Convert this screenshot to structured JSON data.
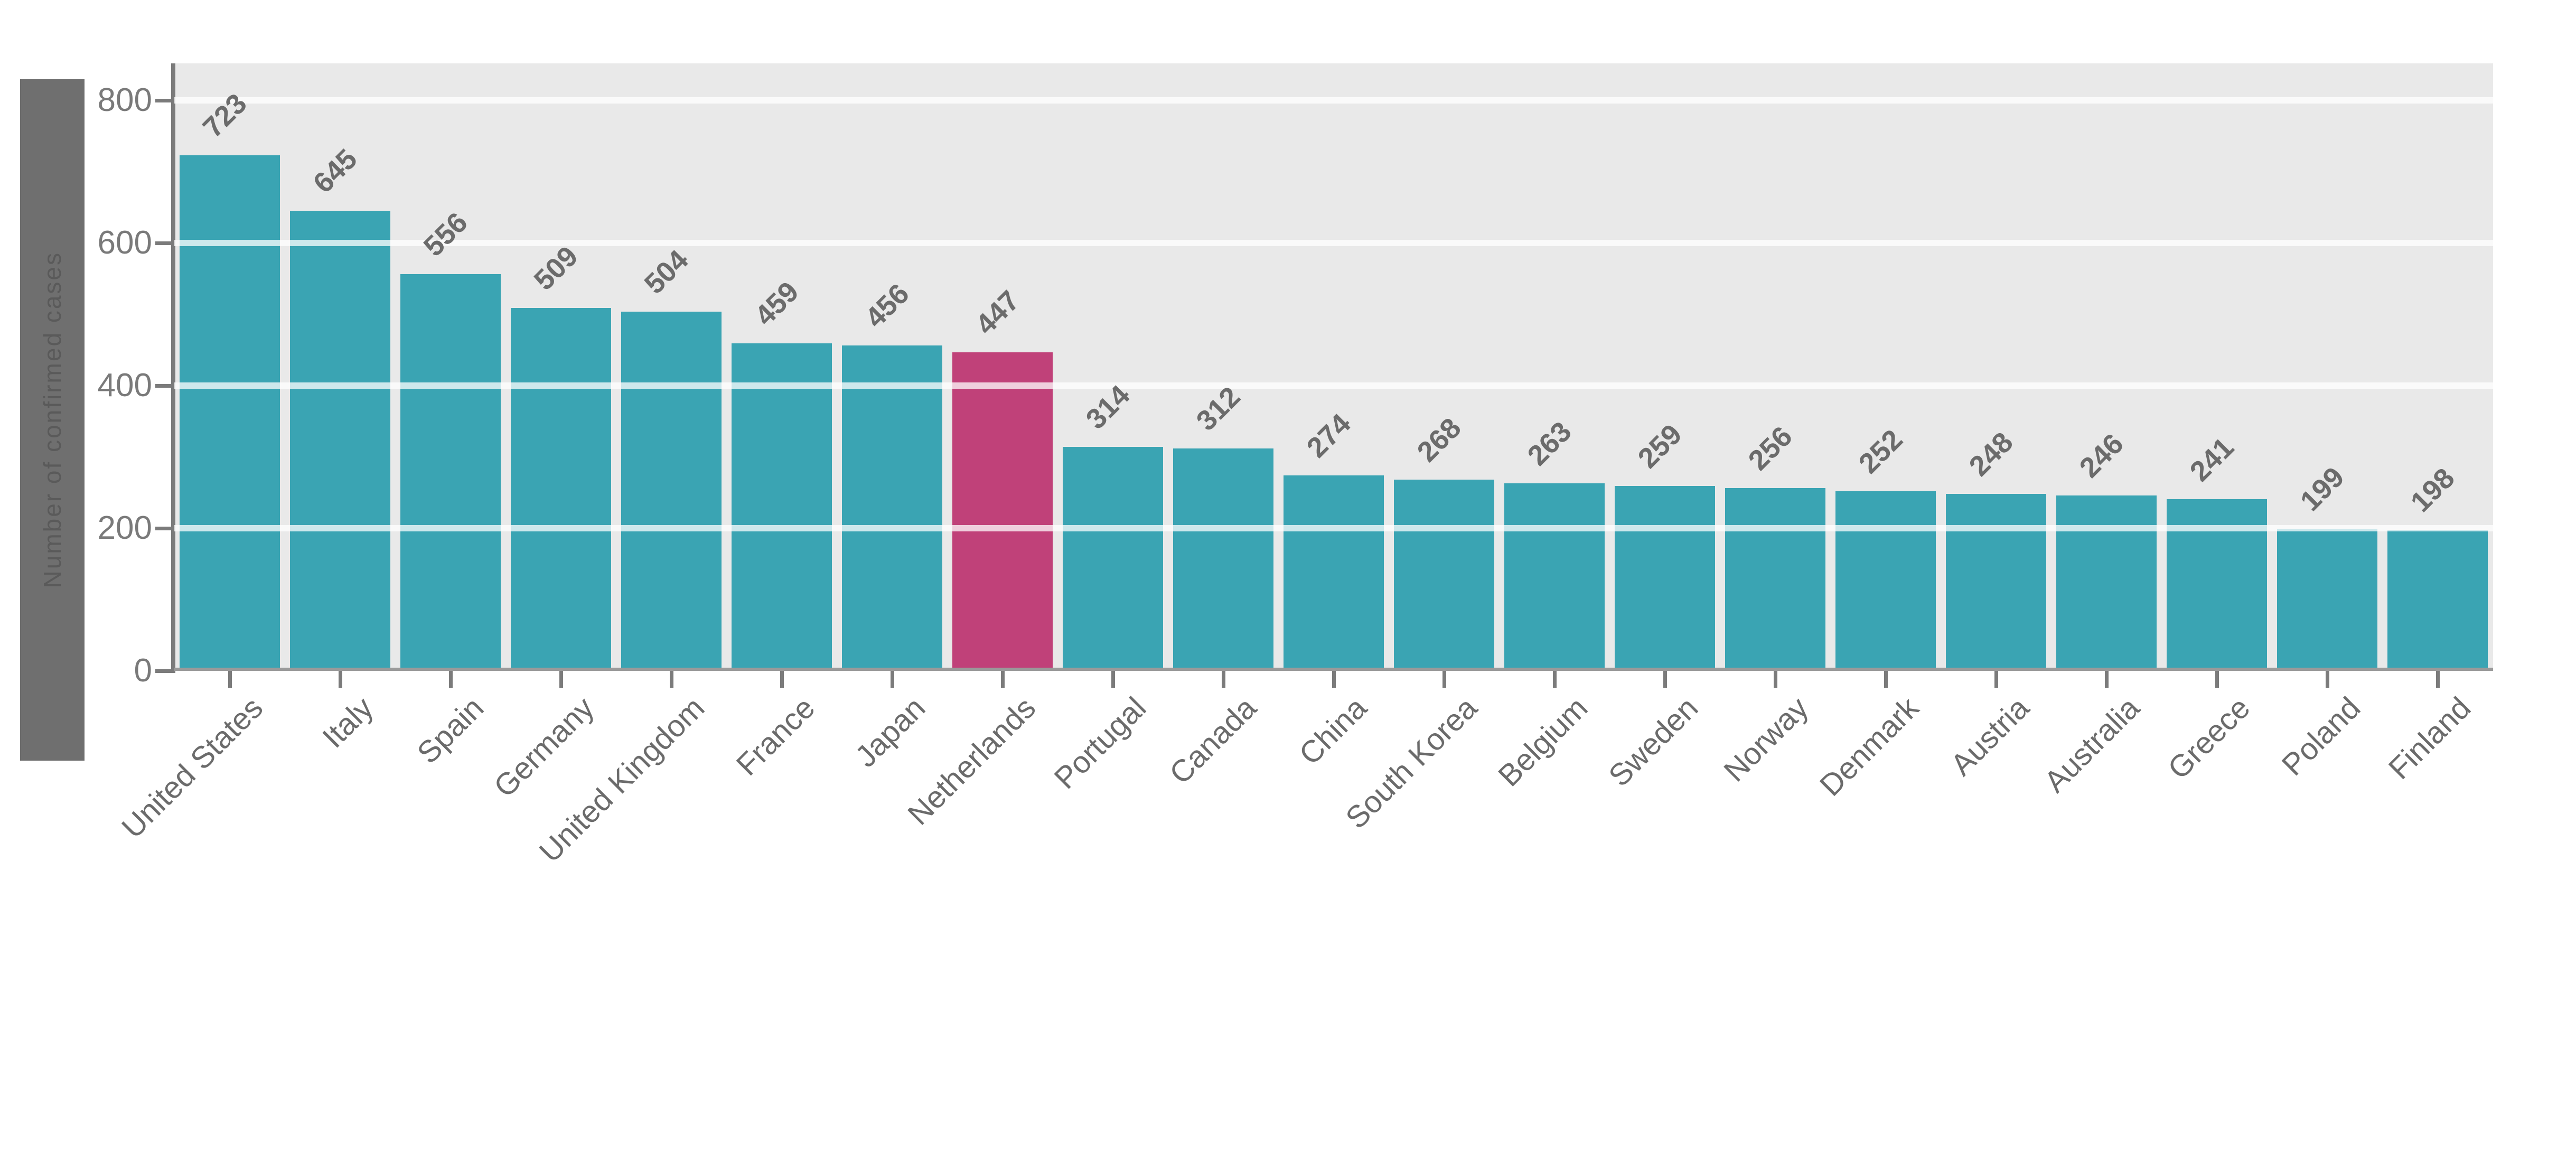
{
  "chart_data": {
    "type": "bar",
    "title": "",
    "xlabel": "",
    "ylabel": "Number of confirmed cases",
    "ylim": [
      0,
      800
    ],
    "yticks": [
      0,
      200,
      400,
      600,
      800
    ],
    "grid": "horizontal-white-gridlines",
    "legend_position": "none",
    "plot_background": "#e9e9e9",
    "categories": [
      "United States",
      "Italy",
      "Spain",
      "Germany",
      "United Kingdom",
      "France",
      "Japan",
      "Netherlands",
      "Portugal",
      "Canada",
      "China",
      "South Korea",
      "Belgium",
      "Sweden",
      "Norway",
      "Denmark",
      "Austria",
      "Australia",
      "Greece",
      "Poland",
      "Finland"
    ],
    "values": [
      723,
      645,
      556,
      509,
      504,
      459,
      456,
      447,
      314,
      312,
      274,
      268,
      263,
      259,
      256,
      252,
      248,
      246,
      241,
      199,
      198
    ],
    "value_labels": [
      "723",
      "645",
      "556",
      "509",
      "504",
      "459",
      "456",
      "447",
      "314",
      "312",
      "274",
      "268",
      "263",
      "259",
      "256",
      "252",
      "248",
      "246",
      "241",
      "199",
      "198"
    ],
    "highlighted_category": "Netherlands",
    "highlight_index": 7,
    "colors": {
      "bar": "#3AA4B3",
      "highlighted_bar": "#C04179",
      "axis": "#7B7B7B",
      "tick_label": "#7A7A7A",
      "value_label": "#6B6B6B",
      "ylabel_band": "#6F6F6F",
      "ylabel_text": "#5A5A5A",
      "gridline": "#F5F5F5",
      "plot_bg": "#E9E9E9"
    }
  }
}
